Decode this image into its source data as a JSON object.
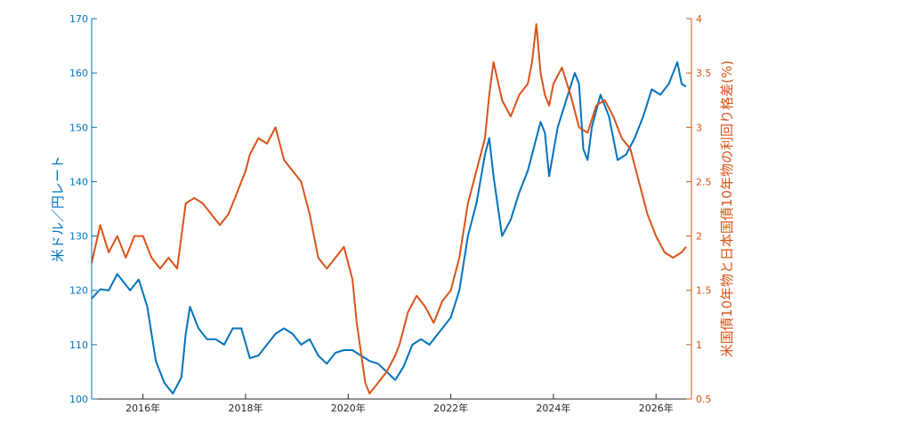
{
  "chart_data": {
    "type": "line",
    "title": "",
    "xlabel": "",
    "x_ticks": [
      "2016年",
      "2018年",
      "2020年",
      "2022年",
      "2024年",
      "2026年"
    ],
    "ylabel_left": "米ドル／円レート",
    "ylabel_right": "米国債10年物と日本国債10年物の利回り格差(%)",
    "ylim_left": [
      100,
      170
    ],
    "ylim_right": [
      0.5,
      4
    ],
    "yticks_left": [
      "100",
      "110",
      "120",
      "130",
      "140",
      "150",
      "160",
      "170"
    ],
    "yticks_right": [
      "0.5",
      "1",
      "1.5",
      "2",
      "2.5",
      "3",
      "3.5",
      "4"
    ],
    "grid": false,
    "legend": "none",
    "colors": {
      "left": "#0072BD",
      "right": "#D95319",
      "axis": "#262626"
    },
    "series": [
      {
        "axis": "left",
        "x": [
          "2015-01",
          "2015-03",
          "2015-05",
          "2015-07",
          "2015-08",
          "2015-10",
          "2015-12",
          "2016-02",
          "2016-03",
          "2016-04",
          "2016-06",
          "2016-08",
          "2016-10",
          "2016-11",
          "2016-12",
          "2017-02",
          "2017-04",
          "2017-06",
          "2017-08",
          "2017-10",
          "2017-12",
          "2018-02",
          "2018-04",
          "2018-06",
          "2018-08",
          "2018-10",
          "2018-12",
          "2019-02",
          "2019-04",
          "2019-06",
          "2019-08",
          "2019-10",
          "2019-12",
          "2020-02",
          "2020-04",
          "2020-06",
          "2020-08",
          "2020-10",
          "2020-12",
          "2021-02",
          "2021-04",
          "2021-06",
          "2021-08",
          "2021-10",
          "2021-12",
          "2022-01",
          "2022-03",
          "2022-05",
          "2022-07",
          "2022-09",
          "2022-10",
          "2022-11",
          "2023-01",
          "2023-03",
          "2023-05",
          "2023-07",
          "2023-09",
          "2023-10",
          "2023-11",
          "2023-12",
          "2024-02",
          "2024-04",
          "2024-06",
          "2024-07",
          "2024-08",
          "2024-09",
          "2024-10",
          "2024-12",
          "2025-02",
          "2025-04",
          "2025-06",
          "2025-08",
          "2025-10",
          "2025-12",
          "2026-02",
          "2026-04",
          "2026-05",
          "2026-06",
          "2026-07",
          "2026-08"
        ],
        "values": [
          118.5,
          120.2,
          120.0,
          123.0,
          122.0,
          120.0,
          122.0,
          117.0,
          112.0,
          107.0,
          103.0,
          101.0,
          104.0,
          112.0,
          117.0,
          113.0,
          111.0,
          111.0,
          110.0,
          113.0,
          113.0,
          107.5,
          108.0,
          110.0,
          112.0,
          113.0,
          112.0,
          110.0,
          111.0,
          108.0,
          106.5,
          108.5,
          109.0,
          109.0,
          108.0,
          107.0,
          106.5,
          105.0,
          103.5,
          106.0,
          110.0,
          111.0,
          110.0,
          112.0,
          114.0,
          115.0,
          120.0,
          130.0,
          136.0,
          145.0,
          148.0,
          141.0,
          130.0,
          133.0,
          138.0,
          142.0,
          148.0,
          151.0,
          149.0,
          141.0,
          150.0,
          155.0,
          160.0,
          158.0,
          146.0,
          144.0,
          150.0,
          156.0,
          152.0,
          144.0,
          145.0,
          148.0,
          152.0,
          157.0,
          156.0,
          158.0,
          160.0,
          162.0,
          158.0,
          157.5
        ]
      },
      {
        "axis": "right",
        "x": [
          "2015-01",
          "2015-03",
          "2015-05",
          "2015-07",
          "2015-09",
          "2015-11",
          "2016-01",
          "2016-03",
          "2016-05",
          "2016-07",
          "2016-09",
          "2016-11",
          "2017-01",
          "2017-03",
          "2017-05",
          "2017-07",
          "2017-09",
          "2017-11",
          "2018-01",
          "2018-02",
          "2018-04",
          "2018-06",
          "2018-08",
          "2018-10",
          "2018-12",
          "2019-02",
          "2019-04",
          "2019-06",
          "2019-08",
          "2019-10",
          "2019-12",
          "2020-02",
          "2020-03",
          "2020-05",
          "2020-06",
          "2020-08",
          "2020-10",
          "2020-12",
          "2021-01",
          "2021-03",
          "2021-05",
          "2021-07",
          "2021-09",
          "2021-11",
          "2022-01",
          "2022-03",
          "2022-05",
          "2022-07",
          "2022-09",
          "2022-10",
          "2022-11",
          "2023-01",
          "2023-03",
          "2023-05",
          "2023-07",
          "2023-08",
          "2023-09",
          "2023-10",
          "2023-11",
          "2023-12",
          "2024-01",
          "2024-03",
          "2024-05",
          "2024-07",
          "2024-09",
          "2024-11",
          "2025-01",
          "2025-03",
          "2025-05",
          "2025-07",
          "2025-09",
          "2025-11",
          "2026-01",
          "2026-03",
          "2026-05",
          "2026-07",
          "2026-08"
        ],
        "values": [
          1.75,
          2.1,
          1.85,
          2.0,
          1.8,
          2.0,
          2.0,
          1.8,
          1.7,
          1.8,
          1.7,
          2.3,
          2.35,
          2.3,
          2.2,
          2.1,
          2.2,
          2.4,
          2.6,
          2.75,
          2.9,
          2.85,
          3.0,
          2.7,
          2.6,
          2.5,
          2.2,
          1.8,
          1.7,
          1.8,
          1.9,
          1.6,
          1.2,
          0.65,
          0.55,
          0.65,
          0.75,
          0.9,
          1.0,
          1.3,
          1.45,
          1.35,
          1.2,
          1.4,
          1.5,
          1.8,
          2.3,
          2.6,
          2.9,
          3.3,
          3.6,
          3.25,
          3.1,
          3.3,
          3.4,
          3.6,
          3.95,
          3.5,
          3.3,
          3.2,
          3.4,
          3.55,
          3.3,
          3.0,
          2.95,
          3.2,
          3.25,
          3.1,
          2.9,
          2.8,
          2.5,
          2.2,
          2.0,
          1.85,
          1.8,
          1.85,
          1.9
        ]
      }
    ]
  }
}
